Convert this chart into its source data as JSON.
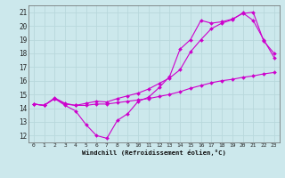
{
  "xlabel": "Windchill (Refroidissement éolien,°C)",
  "xlim": [
    -0.5,
    23.5
  ],
  "ylim": [
    11.5,
    21.5
  ],
  "xticks": [
    0,
    1,
    2,
    3,
    4,
    5,
    6,
    7,
    8,
    9,
    10,
    11,
    12,
    13,
    14,
    15,
    16,
    17,
    18,
    19,
    20,
    21,
    22,
    23
  ],
  "yticks": [
    12,
    13,
    14,
    15,
    16,
    17,
    18,
    19,
    20,
    21
  ],
  "background_color": "#cce8ec",
  "grid_color": "#aad4d8",
  "line_color": "#cc00cc",
  "line1_x": [
    0,
    1,
    2,
    3,
    4,
    5,
    6,
    7,
    8,
    9,
    10,
    11,
    12,
    13,
    14,
    15,
    16,
    17,
    18,
    19,
    20,
    21,
    22,
    23
  ],
  "line1_y": [
    14.3,
    14.2,
    14.7,
    14.2,
    13.8,
    12.8,
    12.0,
    11.8,
    13.1,
    13.6,
    14.5,
    14.8,
    15.5,
    16.3,
    18.3,
    19.0,
    20.4,
    20.2,
    20.3,
    20.5,
    20.9,
    21.0,
    18.9,
    18.0
  ],
  "line2_x": [
    0,
    1,
    2,
    3,
    4,
    5,
    6,
    7,
    8,
    9,
    10,
    11,
    12,
    13,
    14,
    15,
    16,
    17,
    18,
    19,
    20,
    21,
    22,
    23
  ],
  "line2_y": [
    14.3,
    14.2,
    14.7,
    14.3,
    14.2,
    14.2,
    14.3,
    14.3,
    14.4,
    14.5,
    14.6,
    14.7,
    14.85,
    15.0,
    15.2,
    15.45,
    15.65,
    15.85,
    16.0,
    16.1,
    16.25,
    16.35,
    16.5,
    16.6
  ],
  "line3_x": [
    0,
    1,
    2,
    3,
    4,
    5,
    6,
    7,
    8,
    9,
    10,
    11,
    12,
    13,
    14,
    15,
    16,
    17,
    18,
    19,
    20,
    21,
    22,
    23
  ],
  "line3_y": [
    14.3,
    14.2,
    14.75,
    14.35,
    14.2,
    14.35,
    14.5,
    14.45,
    14.7,
    14.9,
    15.1,
    15.4,
    15.8,
    16.2,
    16.8,
    18.1,
    19.0,
    19.8,
    20.2,
    20.45,
    20.95,
    20.4,
    19.0,
    17.7
  ]
}
